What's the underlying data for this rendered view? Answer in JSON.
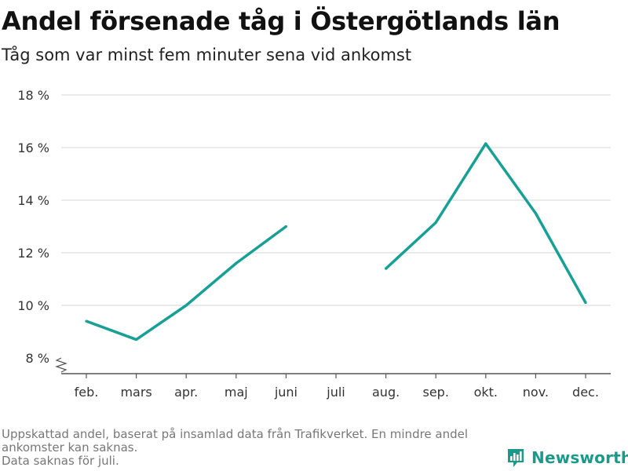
{
  "title": "Andel försenade tåg i Östergötlands län",
  "subtitle": "Tåg som var minst fem minuter sena vid ankomst",
  "footnote": {
    "line1": "Uppskattad andel, baserat på insamlad data från Trafikverket. En mindre andel",
    "line2": "ankomster kan saknas.",
    "line3": "Data saknas för juli."
  },
  "brand": {
    "name": "Newsworthy",
    "icon": "bar-chart-logo-icon",
    "color": "#1a9a8c"
  },
  "colors": {
    "line": "#17a096",
    "grid": "#dddddd",
    "axis": "#555555"
  },
  "chart_data": {
    "type": "line",
    "title": "Andel försenade tåg i Östergötlands län",
    "subtitle": "Tåg som var minst fem minuter sena vid ankomst",
    "categories": [
      "feb.",
      "mars",
      "apr.",
      "maj",
      "juni",
      "juli",
      "aug.",
      "sep.",
      "okt.",
      "nov.",
      "dec."
    ],
    "series": [
      {
        "values": [
          9.4,
          8.7,
          10.0,
          11.6,
          13.0,
          null,
          11.4,
          13.15,
          16.15,
          13.5,
          10.1
        ]
      }
    ],
    "ylim": [
      8,
      18
    ],
    "y_ticks": [
      8,
      10,
      12,
      14,
      16,
      18
    ],
    "y_tick_labels": [
      "8 %",
      "10 %",
      "12 %",
      "14 %",
      "16 %",
      "18 %"
    ],
    "grid": true,
    "axis_break": true
  }
}
